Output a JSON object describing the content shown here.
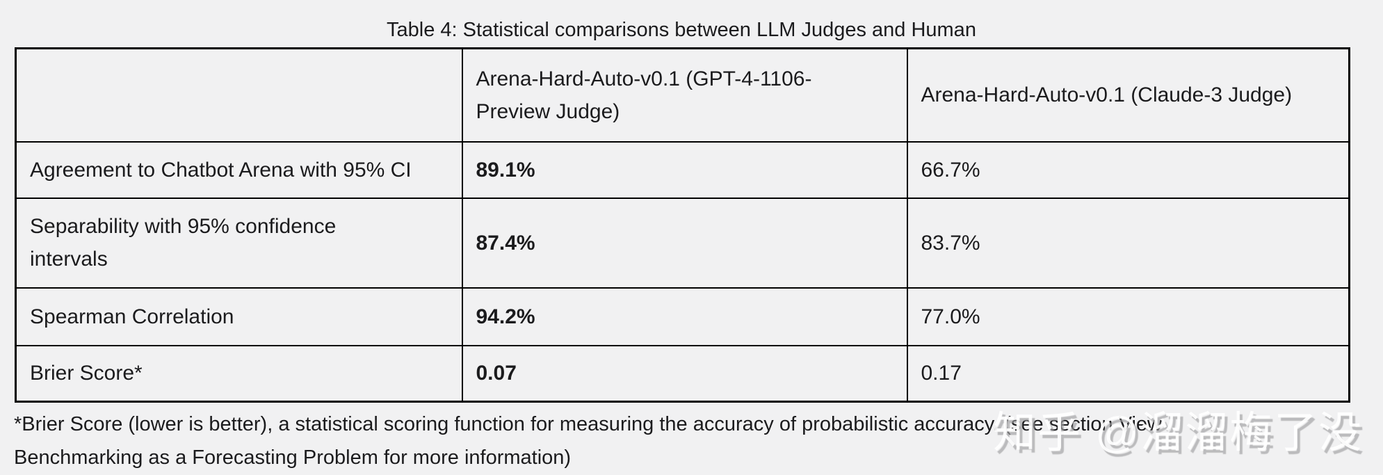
{
  "title": "Table 4: Statistical comparisons between LLM Judges and Human",
  "table": {
    "columns": [
      "",
      "Arena-Hard-Auto-v0.1 (GPT-4-1106-\nPreview Judge)",
      "Arena-Hard-Auto-v0.1 (Claude-3 Judge)"
    ],
    "rows": [
      {
        "metric": "Agreement to Chatbot Arena with 95% CI",
        "gpt4_judge": "89.1%",
        "claude3_judge": "66.7%"
      },
      {
        "metric": "Separability with 95% confidence\nintervals",
        "gpt4_judge": "87.4%",
        "claude3_judge": "83.7%"
      },
      {
        "metric": "Spearman Correlation",
        "gpt4_judge": "94.2%",
        "claude3_judge": "77.0%"
      },
      {
        "metric": "Brier Score*",
        "gpt4_judge": "0.07",
        "claude3_judge": "0.17"
      }
    ]
  },
  "footnote": {
    "line1": "*Brier Score (lower is better), a statistical scoring function for measuring the accuracy of probabilistic accuracy. (see section View",
    "line2": "Benchmarking as a Forecasting Problem for more information)"
  },
  "watermark": {
    "text": "知乎 @溜溜梅了没"
  },
  "colors": {
    "background": "#f1f1f2",
    "border": "#000000",
    "text": "#1b1b1d",
    "watermark_fill": "#ffffff",
    "watermark_shadow": "#9e9ea0"
  }
}
